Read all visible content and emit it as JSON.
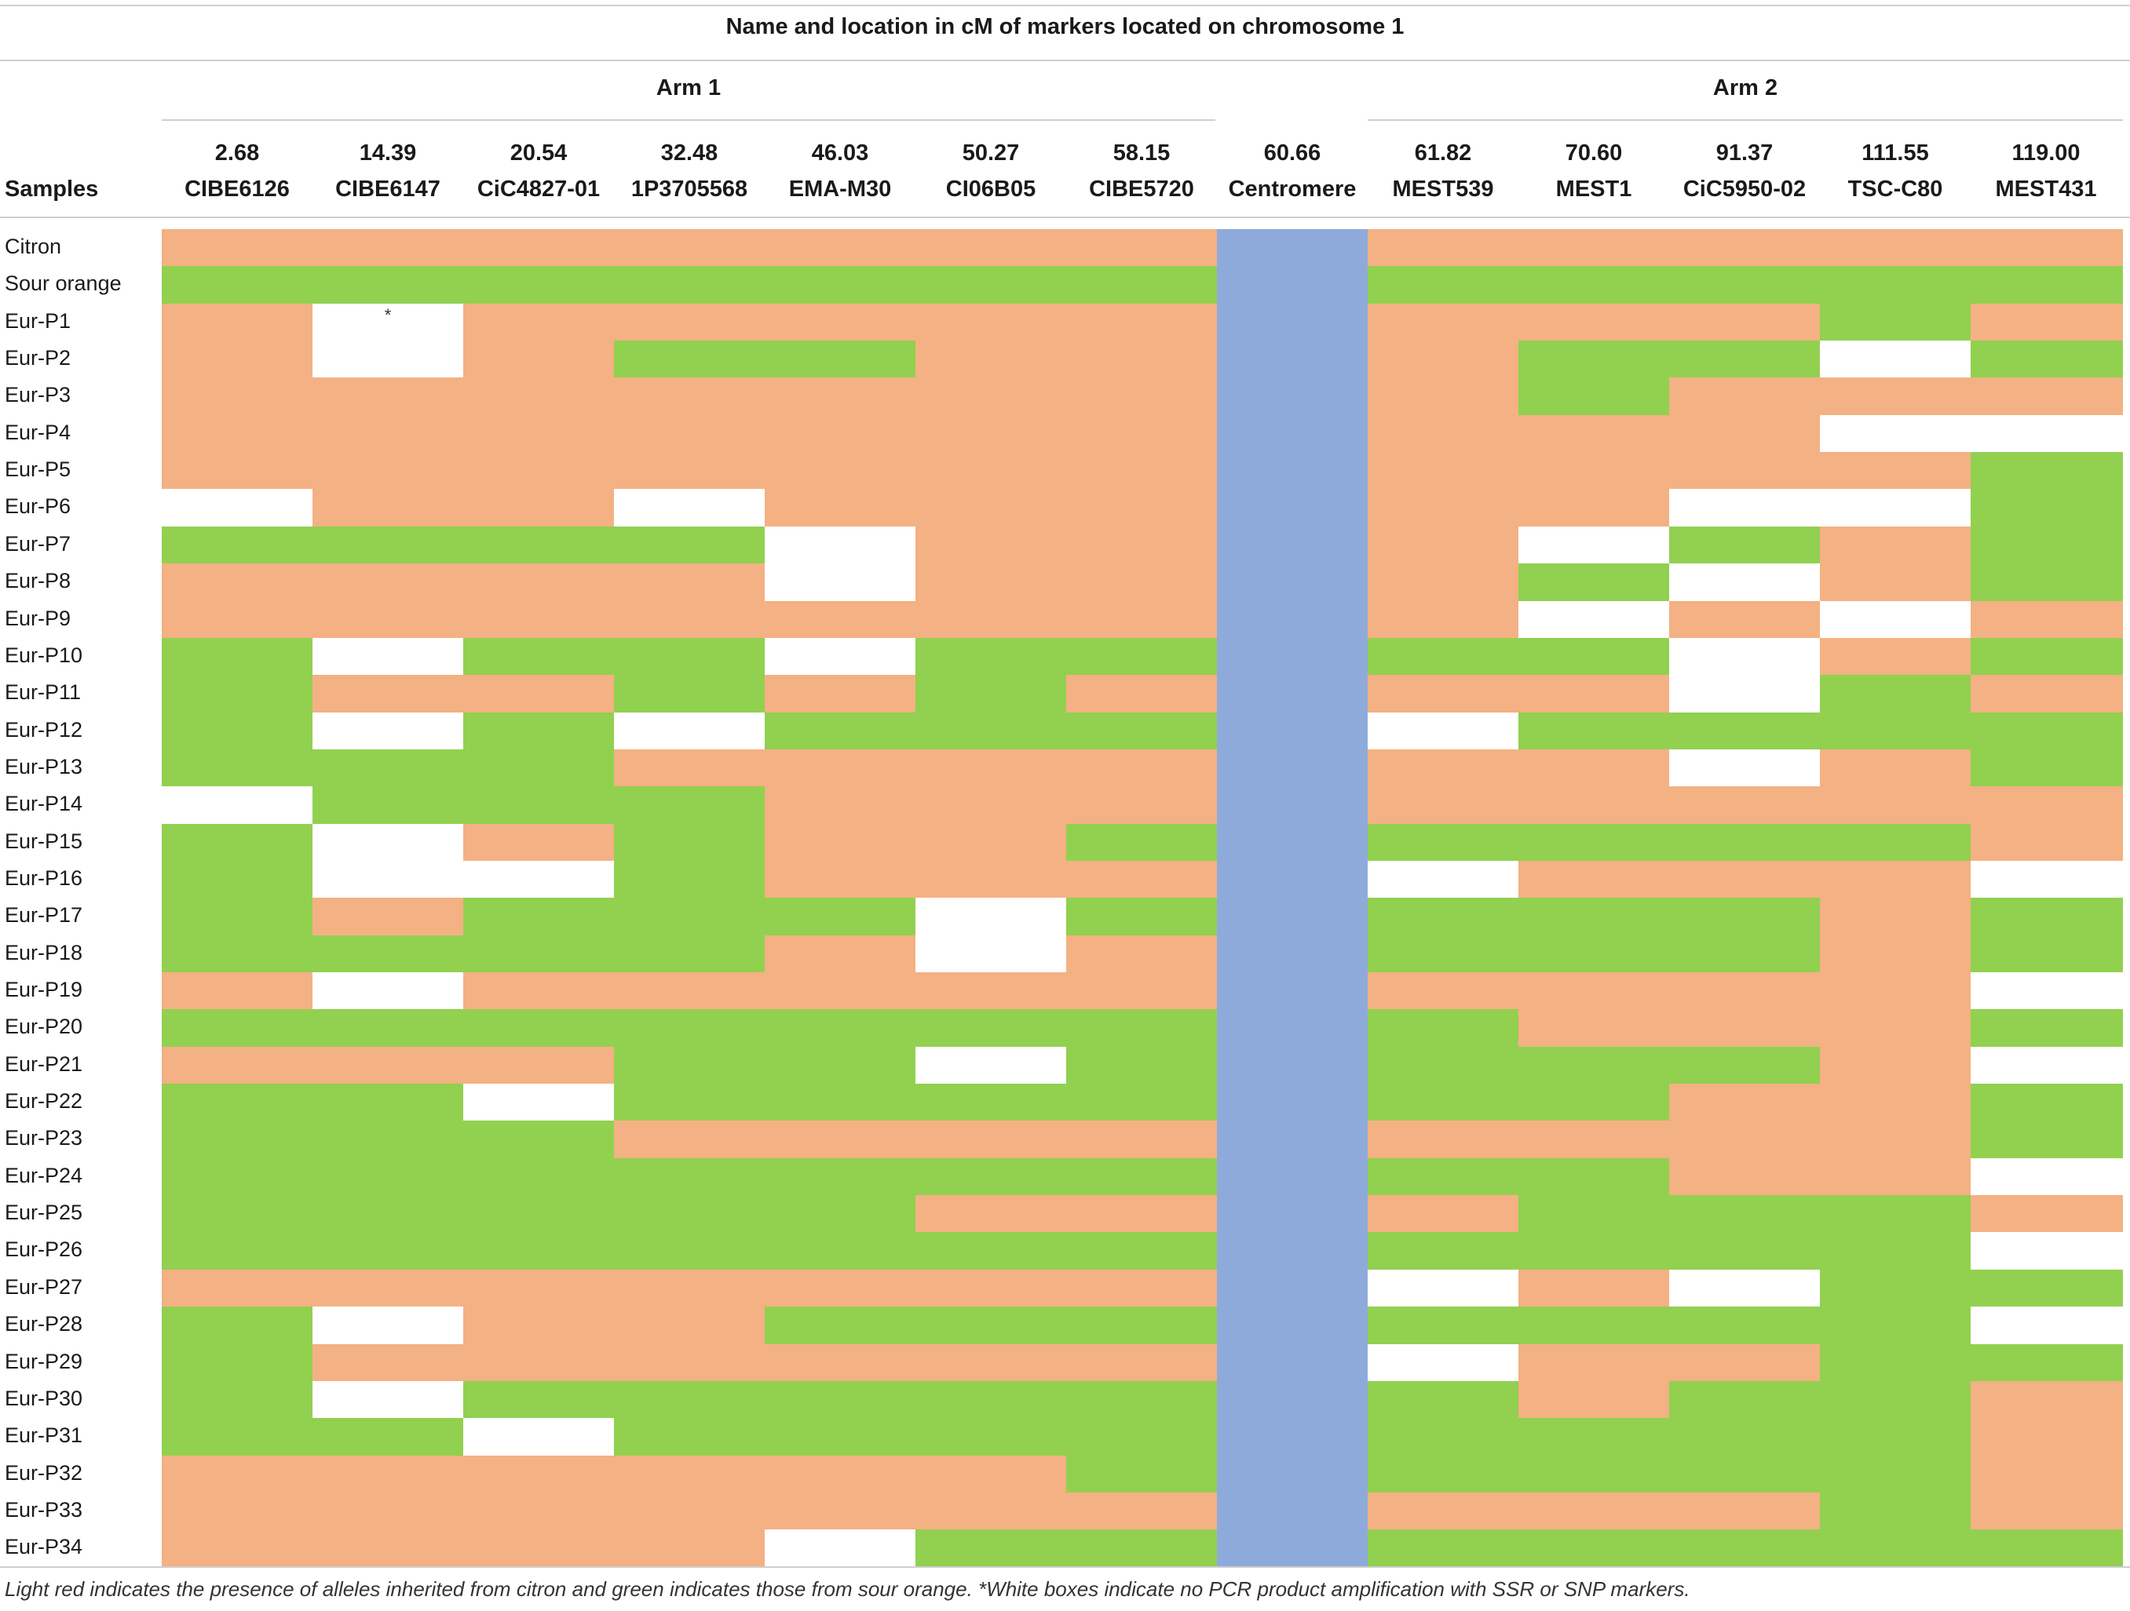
{
  "table": {
    "title": "Name and location in cM of markers located on chromosome 1",
    "arm1_label": "Arm 1",
    "arm2_label": "Arm 2",
    "samples_header": "Samples",
    "centromere": {
      "position": "60.66",
      "name": "Centromere"
    },
    "arm1_markers": [
      {
        "position": "2.68",
        "name": "CIBE6126"
      },
      {
        "position": "14.39",
        "name": "CIBE6147"
      },
      {
        "position": "20.54",
        "name": "CiC4827-01"
      },
      {
        "position": "32.48",
        "name": "1P3705568"
      },
      {
        "position": "46.03",
        "name": "EMA-M30"
      },
      {
        "position": "50.27",
        "name": "CI06B05"
      },
      {
        "position": "58.15",
        "name": "CIBE5720"
      }
    ],
    "arm2_markers": [
      {
        "position": "61.82",
        "name": "MEST539"
      },
      {
        "position": "70.60",
        "name": "MEST1"
      },
      {
        "position": "91.37",
        "name": "CiC5950-02"
      },
      {
        "position": "111.55",
        "name": "TSC-C80"
      },
      {
        "position": "119.00",
        "name": "MEST431"
      }
    ],
    "legend": {
      "C": {
        "meaning": "citron",
        "color": "#f4b183"
      },
      "S": {
        "meaning": "sour orange",
        "color": "#92d050"
      },
      "W": {
        "meaning": "no PCR amplification",
        "color": "#ffffff"
      },
      "centromere_color": "#8eaadb"
    },
    "rows": [
      {
        "sample": "Citron",
        "arm1": "CCCCCCC",
        "arm2": "CCCCC"
      },
      {
        "sample": "Sour orange",
        "arm1": "SSSSSSS",
        "arm2": "SSSSS"
      },
      {
        "sample": "Eur-P1",
        "arm1": "CWCCCCC",
        "arm2": "CCCSC",
        "mark": "*"
      },
      {
        "sample": "Eur-P2",
        "arm1": "CWCSSCC",
        "arm2": "CSSWS"
      },
      {
        "sample": "Eur-P3",
        "arm1": "CCCCCCC",
        "arm2": "CSCCC"
      },
      {
        "sample": "Eur-P4",
        "arm1": "CCCCCCC",
        "arm2": "CCCWW"
      },
      {
        "sample": "Eur-P5",
        "arm1": "CCCCCCC",
        "arm2": "CCCCS"
      },
      {
        "sample": "Eur-P6",
        "arm1": "WCCWCCC",
        "arm2": "CCWWS"
      },
      {
        "sample": "Eur-P7",
        "arm1": "SSSSWCC",
        "arm2": "CWSCS"
      },
      {
        "sample": "Eur-P8",
        "arm1": "CCCCWCC",
        "arm2": "CSWCS"
      },
      {
        "sample": "Eur-P9",
        "arm1": "CCCCCCC",
        "arm2": "CWCWC"
      },
      {
        "sample": "Eur-P10",
        "arm1": "SWSSWSS",
        "arm2": "SSWCS"
      },
      {
        "sample": "Eur-P11",
        "arm1": "SCCSCSC",
        "arm2": "CCWSC"
      },
      {
        "sample": "Eur-P12",
        "arm1": "SWSWSSS",
        "arm2": "WSSSS"
      },
      {
        "sample": "Eur-P13",
        "arm1": "SSSCCCC",
        "arm2": "CCWCS"
      },
      {
        "sample": "Eur-P14",
        "arm1": "WSSSCCC",
        "arm2": "CCCCC"
      },
      {
        "sample": "Eur-P15",
        "arm1": "SWCSCCS",
        "arm2": "SSSSC"
      },
      {
        "sample": "Eur-P16",
        "arm1": "SWWSCCC",
        "arm2": "WCCCW"
      },
      {
        "sample": "Eur-P17",
        "arm1": "SCSSSWS",
        "arm2": "SSSCS"
      },
      {
        "sample": "Eur-P18",
        "arm1": "SSSSCWC",
        "arm2": "SSSCS"
      },
      {
        "sample": "Eur-P19",
        "arm1": "CWCCCCC",
        "arm2": "CCCCW"
      },
      {
        "sample": "Eur-P20",
        "arm1": "SSSSSSS",
        "arm2": "SCCCS"
      },
      {
        "sample": "Eur-P21",
        "arm1": "CCCSSWS",
        "arm2": "SSSCW"
      },
      {
        "sample": "Eur-P22",
        "arm1": "SSWSSSS",
        "arm2": "SSCCS"
      },
      {
        "sample": "Eur-P23",
        "arm1": "SSSCCCC",
        "arm2": "CCCCS"
      },
      {
        "sample": "Eur-P24",
        "arm1": "SSSSSSS",
        "arm2": "SSCCW"
      },
      {
        "sample": "Eur-P25",
        "arm1": "SSSSSCC",
        "arm2": "CSSSC"
      },
      {
        "sample": "Eur-P26",
        "arm1": "SSSSSSS",
        "arm2": "SSSSW"
      },
      {
        "sample": "Eur-P27",
        "arm1": "CCCCCCC",
        "arm2": "WCWSS"
      },
      {
        "sample": "Eur-P28",
        "arm1": "SWCCSSS",
        "arm2": "SSSSW"
      },
      {
        "sample": "Eur-P29",
        "arm1": "SCCCCCC",
        "arm2": "WCCSS"
      },
      {
        "sample": "Eur-P30",
        "arm1": "SWSSSSS",
        "arm2": "SCSSC"
      },
      {
        "sample": "Eur-P31",
        "arm1": "SSWSSSS",
        "arm2": "SSSSC"
      },
      {
        "sample": "Eur-P32",
        "arm1": "CCCCCCS",
        "arm2": "SSSSC"
      },
      {
        "sample": "Eur-P33",
        "arm1": "CCCCCCC",
        "arm2": "CCCSC"
      },
      {
        "sample": "Eur-P34",
        "arm1": "CCCCWSS",
        "arm2": "SSSSS"
      }
    ],
    "footnote": "Light red indicates the presence of alleles inherited from citron and green indicates those from sour orange. *White boxes indicate no PCR product amplification with SSR or SNP markers."
  }
}
